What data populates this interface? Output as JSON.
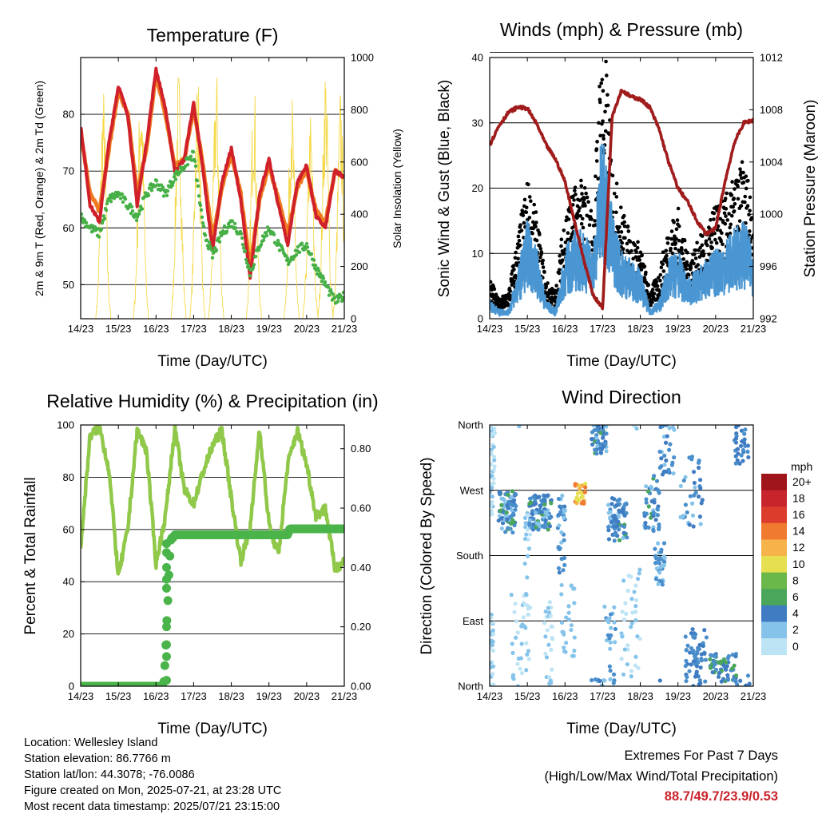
{
  "xticks": [
    "14/23",
    "15/23",
    "16/23",
    "17/23",
    "18/23",
    "19/23",
    "20/23",
    "21/23"
  ],
  "xlabel": "Time (Day/UTC)",
  "panels": {
    "temp": {
      "title": "Temperature (F)",
      "ylabel_left": "2m & 9m T (Red, Orange) & 2m Td (Green)",
      "ylabel_right": "Solar Insolation (Yellow)",
      "left_ticks": [
        "50",
        "60",
        "70",
        "80"
      ],
      "right_ticks": [
        "0",
        "200",
        "400",
        "600",
        "800",
        "1000"
      ]
    },
    "wind": {
      "title": "Winds (mph) & Pressure (mb)",
      "ylabel_left": "Sonic Wind & Gust (Blue, Black)",
      "ylabel_right": "Station Pressure (Maroon)",
      "left_ticks": [
        "0",
        "10",
        "20",
        "30",
        "40"
      ],
      "right_ticks": [
        "992",
        "996",
        "1000",
        "1004",
        "1008",
        "1012"
      ]
    },
    "rh": {
      "title": "Relative Humidity (%) & Precipitation (in)",
      "ylabel_left": "Percent & Total Rainfall",
      "left_ticks": [
        "0",
        "20",
        "40",
        "60",
        "80",
        "100"
      ],
      "right_ticks": [
        "0.00",
        "0.20",
        "0.40",
        "0.60",
        "0.80"
      ]
    },
    "dir": {
      "title": "Wind Direction",
      "ylabel_left": "Direction (Colored By Speed)",
      "left_ticks": [
        "North",
        "East",
        "South",
        "West",
        "North"
      ],
      "legend_title": "mph",
      "legend_labels": [
        "20+",
        "18",
        "16",
        "14",
        "12",
        "10",
        "8",
        "6",
        "4",
        "2",
        "0"
      ]
    }
  },
  "info": {
    "location": "Location: Wellesley Island",
    "elevation": "Station elevation: 86.7766 m",
    "latlon": "Station lat/lon: 44.3078; -76.0086",
    "created": "Figure created on Mon, 2025-07-21, at 23:28 UTC",
    "recent": "Most recent data timestamp: 2025/07/21 23:15:00"
  },
  "extremes": {
    "title": "Extremes For Past 7 Days",
    "subtitle": "(High/Low/Max Wind/Total Precipitation)",
    "values": "88.7/49.7/23.9/0.53"
  },
  "colors": {
    "temp_2m": "#d0202a",
    "temp_9m": "#f07a20",
    "dewpoint": "#46b046",
    "solar": "#f5d94a",
    "gust": "#000000",
    "wind": "#4a96d2",
    "pressure": "#a01c1c",
    "rh": "#90c84a",
    "precip": "#4ab44a",
    "speed_scale": [
      "#bde4f5",
      "#85c3ea",
      "#4a8fcc",
      "#3f7cc2",
      "#4aa65a",
      "#6ab84a",
      "#e6e050",
      "#f5b34a",
      "#f07a30",
      "#dc3c2c",
      "#c8242c",
      "#a0141c"
    ]
  },
  "chart_data": [
    {
      "type": "line",
      "title": "Temperature (F)",
      "xlabel": "Time (Day/UTC)",
      "ylabel": "2m & 9m T (Red, Orange) & 2m Td (Green)",
      "y2label": "Solar Insolation (Yellow)",
      "xlim": [
        0,
        7
      ],
      "ylim": [
        44,
        90
      ],
      "y2lim": [
        0,
        1000
      ],
      "x": [
        0,
        0.25,
        0.5,
        0.75,
        1,
        1.25,
        1.5,
        1.75,
        2,
        2.25,
        2.5,
        2.75,
        3,
        3.25,
        3.5,
        3.75,
        4,
        4.25,
        4.5,
        4.75,
        5,
        5.25,
        5.5,
        5.75,
        6,
        6.25,
        6.5,
        6.75,
        7
      ],
      "series": [
        {
          "name": "2m T",
          "axis": "left",
          "values": [
            78,
            64,
            61,
            75,
            85,
            80,
            64,
            75,
            88,
            81,
            70,
            72,
            82,
            70,
            56,
            68,
            74,
            65,
            51,
            66,
            72,
            64,
            57,
            68,
            71,
            62,
            60,
            70,
            69
          ]
        },
        {
          "name": "9m T",
          "axis": "left",
          "values": [
            77,
            66,
            63,
            74,
            84,
            80,
            66,
            74,
            87,
            80,
            71,
            72,
            81,
            71,
            58,
            67,
            73,
            66,
            53,
            65,
            71,
            65,
            59,
            67,
            70,
            63,
            61,
            70,
            69
          ]
        },
        {
          "name": "2m Td",
          "axis": "left",
          "values": [
            62,
            60,
            59,
            65,
            66,
            64,
            62,
            66,
            68,
            66,
            69,
            71,
            73,
            60,
            55,
            59,
            61,
            59,
            52,
            57,
            60,
            57,
            54,
            56,
            57,
            53,
            50,
            47,
            48
          ]
        },
        {
          "name": "Solar",
          "axis": "right",
          "peaks_x": [
            0.6,
            1.6,
            2.6,
            3.1,
            3.6,
            4.6,
            5.6,
            6.1,
            6.5,
            6.9
          ],
          "peaks_y": [
            900,
            980,
            970,
            1000,
            980,
            950,
            900,
            800,
            1000,
            900
          ]
        }
      ]
    },
    {
      "type": "scatter",
      "title": "Winds (mph) & Pressure (mb)",
      "xlabel": "Time (Day/UTC)",
      "ylabel": "Sonic Wind & Gust (Blue, Black)",
      "y2label": "Station Pressure (Maroon)",
      "xlim": [
        0,
        7
      ],
      "ylim": [
        0,
        40
      ],
      "y2lim": [
        992,
        1012
      ],
      "x": [
        0,
        0.25,
        0.5,
        0.75,
        1,
        1.25,
        1.5,
        1.75,
        2,
        2.25,
        2.5,
        2.75,
        3,
        3.25,
        3.5,
        3.75,
        4,
        4.25,
        4.5,
        4.75,
        5,
        5.25,
        5.5,
        5.75,
        6,
        6.25,
        6.5,
        6.75,
        7
      ],
      "series": [
        {
          "name": "Gust",
          "values": [
            5,
            2,
            3,
            9,
            15,
            11,
            4,
            3,
            12,
            14,
            15,
            11,
            34,
            17,
            12,
            9,
            8,
            3,
            5,
            10,
            12,
            7,
            8,
            10,
            12,
            13,
            15,
            17,
            13
          ]
        },
        {
          "name": "Wind",
          "values": [
            2,
            1,
            1,
            5,
            10,
            7,
            2,
            1,
            7,
            9,
            9,
            7,
            20,
            11,
            7,
            6,
            5,
            1,
            2,
            6,
            7,
            4,
            5,
            6,
            7,
            8,
            9,
            10,
            7
          ]
        },
        {
          "name": "Pressure",
          "axis": "right",
          "values": [
            1005.3,
            1006.8,
            1007.8,
            1008.2,
            1008.1,
            1006.9,
            1005.3,
            1004.2,
            1002.5,
            999.5,
            996.5,
            993.8,
            992.8,
            1007.5,
            1009.5,
            1009.0,
            1008.8,
            1008.2,
            1006.5,
            1004.0,
            1002.0,
            1001.0,
            999.5,
            998.5,
            998.9,
            1002.5,
            1005.5,
            1007.0,
            1007.2
          ]
        }
      ]
    },
    {
      "type": "line",
      "title": "Relative Humidity (%) & Precipitation (in)",
      "xlabel": "Time (Day/UTC)",
      "ylabel": "Percent & Total Rainfall",
      "xlim": [
        0,
        7
      ],
      "ylim": [
        0,
        100
      ],
      "y2lim": [
        0,
        0.88
      ],
      "x": [
        0,
        0.25,
        0.5,
        0.75,
        1,
        1.25,
        1.5,
        1.75,
        2,
        2.25,
        2.5,
        2.75,
        3,
        3.25,
        3.5,
        3.75,
        4,
        4.25,
        4.5,
        4.75,
        5,
        5.25,
        5.5,
        5.75,
        6,
        6.25,
        6.5,
        6.75,
        7
      ],
      "series": [
        {
          "name": "RH",
          "values": [
            53,
            96,
            99,
            83,
            42,
            60,
            98,
            90,
            47,
            65,
            99,
            75,
            70,
            82,
            92,
            98,
            72,
            48,
            60,
            99,
            62,
            50,
            85,
            98,
            85,
            65,
            68,
            45,
            48
          ]
        },
        {
          "name": "Precip",
          "axis": "right",
          "x": [
            0,
            2.2,
            2.25,
            2.28,
            2.32,
            2.35,
            2.4,
            2.45,
            2.5,
            5.5,
            5.55,
            6,
            7
          ],
          "values": [
            0,
            0,
            0.1,
            0.2,
            0.3,
            0.4,
            0.5,
            0.5,
            0.51,
            0.51,
            0.53,
            0.53,
            0.53
          ]
        }
      ]
    },
    {
      "type": "scatter",
      "title": "Wind Direction",
      "xlabel": "Time (Day/UTC)",
      "ylabel": "Direction (Colored By Speed)",
      "xlim": [
        0,
        7
      ],
      "ylim": [
        0,
        360
      ],
      "yticks": [
        "North",
        "East",
        "South",
        "West",
        "North"
      ],
      "legend": "right",
      "legend_title": "mph",
      "legend_labels": [
        "20+",
        "18",
        "16",
        "14",
        "12",
        "10",
        "8",
        "6",
        "4",
        "2",
        "0"
      ]
    }
  ]
}
